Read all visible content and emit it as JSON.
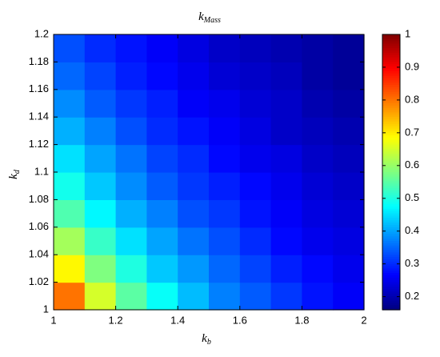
{
  "chart_data": {
    "type": "heatmap",
    "title": "k",
    "title_sub": "Mass",
    "x_label": "k",
    "x_label_sub": "b",
    "y_label": "k",
    "y_label_sub": "d",
    "x": [
      1.05,
      1.15,
      1.25,
      1.35,
      1.45,
      1.55,
      1.65,
      1.75,
      1.85,
      1.95
    ],
    "y": [
      1.01,
      1.03,
      1.05,
      1.07,
      1.09,
      1.11,
      1.13,
      1.15,
      1.17,
      1.19
    ],
    "values": [
      [
        0.8,
        0.65,
        0.55,
        0.48,
        0.42,
        0.37,
        0.34,
        0.31,
        0.28,
        0.26
      ],
      [
        0.69,
        0.58,
        0.5,
        0.43,
        0.39,
        0.35,
        0.32,
        0.29,
        0.27,
        0.25
      ],
      [
        0.61,
        0.52,
        0.45,
        0.4,
        0.36,
        0.33,
        0.3,
        0.27,
        0.25,
        0.24
      ],
      [
        0.54,
        0.47,
        0.41,
        0.37,
        0.33,
        0.31,
        0.28,
        0.26,
        0.24,
        0.23
      ],
      [
        0.49,
        0.43,
        0.38,
        0.34,
        0.31,
        0.29,
        0.27,
        0.25,
        0.23,
        0.22
      ],
      [
        0.45,
        0.4,
        0.36,
        0.32,
        0.3,
        0.27,
        0.25,
        0.24,
        0.22,
        0.21
      ],
      [
        0.41,
        0.37,
        0.33,
        0.3,
        0.28,
        0.26,
        0.24,
        0.22,
        0.21,
        0.2
      ],
      [
        0.38,
        0.34,
        0.31,
        0.29,
        0.26,
        0.25,
        0.23,
        0.22,
        0.2,
        0.19
      ],
      [
        0.35,
        0.32,
        0.29,
        0.27,
        0.25,
        0.23,
        0.22,
        0.21,
        0.19,
        0.18
      ],
      [
        0.33,
        0.3,
        0.28,
        0.26,
        0.24,
        0.22,
        0.21,
        0.2,
        0.19,
        0.18
      ]
    ],
    "colormap": "jet",
    "xlim": [
      1,
      2
    ],
    "xticks": [
      1,
      1.2,
      1.4,
      1.6,
      1.8,
      2
    ],
    "ylim": [
      1,
      1.2
    ],
    "yticks": [
      1,
      1.02,
      1.04,
      1.06,
      1.08,
      1.1,
      1.12,
      1.14,
      1.16,
      1.18,
      1.2
    ],
    "clim": [
      0.16,
      1
    ],
    "cticks": [
      0.2,
      0.3,
      0.4,
      0.5,
      0.6,
      0.7,
      0.8,
      0.9,
      1
    ]
  }
}
